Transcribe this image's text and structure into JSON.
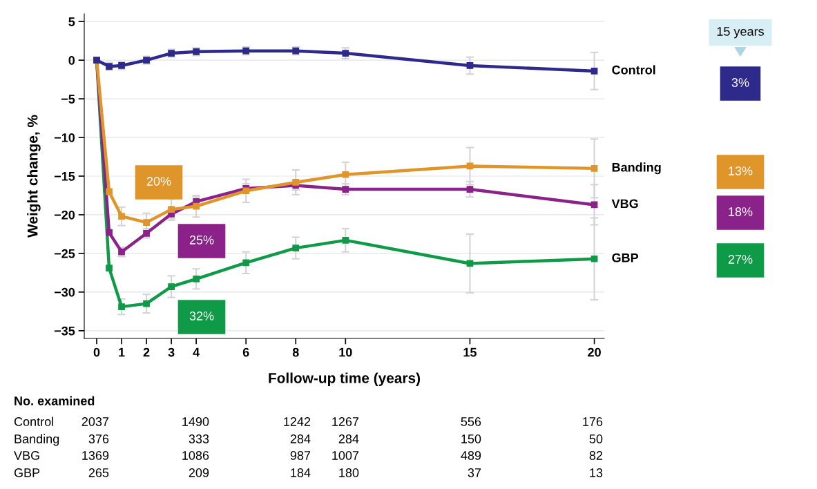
{
  "chart_data": {
    "type": "line",
    "xlabel": "Follow-up time (years)",
    "ylabel": "Weight change, %",
    "x": [
      0,
      0.5,
      1,
      2,
      3,
      4,
      6,
      8,
      10,
      15,
      20
    ],
    "xlim": [
      -0.5,
      20.4
    ],
    "xticks": [
      0,
      1,
      2,
      3,
      4,
      6,
      8,
      10,
      15,
      20
    ],
    "ylim": [
      -36,
      6
    ],
    "yticks": [
      5,
      0,
      {
        "value": -5,
        "label": "−5"
      },
      {
        "value": -10,
        "label": "−10"
      },
      {
        "value": -15,
        "label": "−15"
      },
      {
        "value": -20,
        "label": "−20"
      },
      {
        "value": -25,
        "label": "−25"
      },
      {
        "value": -30,
        "label": "−30"
      },
      {
        "value": -35,
        "label": "−35"
      }
    ],
    "grid": "y",
    "marker": "square",
    "line_style": "solid",
    "legend": false,
    "series": [
      {
        "name": "Control",
        "color": "#2e2a8c",
        "values": [
          0,
          -0.8,
          -0.7,
          0,
          0.9,
          1.1,
          1.2,
          1.2,
          0.9,
          -0.7,
          -1.4
        ],
        "errors": [
          null,
          0.5,
          0.5,
          0.5,
          0.5,
          0.5,
          0.5,
          0.5,
          0.7,
          1.1,
          2.4
        ]
      },
      {
        "name": "Banding",
        "color": "#e0952a",
        "values": [
          0,
          -17,
          -20.2,
          -21.0,
          -19.3,
          -18.9,
          -16.9,
          -15.8,
          -14.8,
          -13.7,
          -14.0
        ],
        "errors": [
          null,
          null,
          1.2,
          1.2,
          1.4,
          1.4,
          1.5,
          1.6,
          1.6,
          2.4,
          3.8
        ]
      },
      {
        "name": "VBG",
        "color": "#8b2289",
        "values": [
          0,
          -22.3,
          -24.8,
          -22.4,
          -19.9,
          -18.3,
          -16.6,
          -16.2,
          -16.7,
          -16.7,
          -18.7
        ],
        "errors": [
          null,
          null,
          0.6,
          0.6,
          0.6,
          0.6,
          0.6,
          0.6,
          0.7,
          1.0,
          2.6
        ]
      },
      {
        "name": "GBP",
        "color": "#0f9a47",
        "values": [
          0,
          -26.9,
          -31.9,
          -31.5,
          -29.3,
          -28.3,
          -26.2,
          -24.3,
          -23.3,
          -26.3,
          -25.7
        ],
        "errors": [
          null,
          null,
          1.0,
          1.2,
          1.4,
          1.3,
          1.4,
          1.4,
          1.5,
          3.8,
          5.3
        ]
      }
    ],
    "annotations": [
      "No. examined",
      "Control",
      "2037",
      "1490",
      "1242",
      "1267",
      "556",
      "176",
      "Banding",
      "376",
      "333",
      "284",
      "284",
      "150",
      "50",
      "VBG",
      "1369",
      "1086",
      "987",
      "1007",
      "489",
      "82",
      "GBP",
      "265",
      "209",
      "184",
      "180",
      "37",
      "13",
      "15 years",
      "3%",
      "13%",
      "18%",
      "27%",
      "20%",
      "25%",
      "32%"
    ]
  }
}
